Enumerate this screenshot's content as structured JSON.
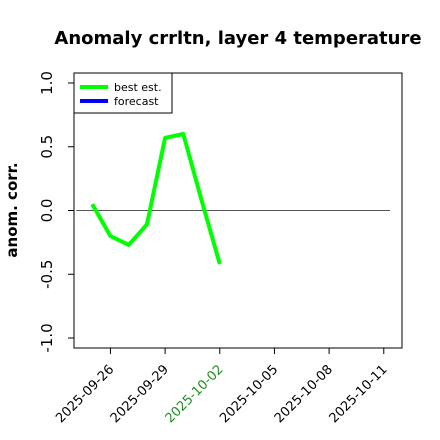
{
  "chart_data": {
    "type": "line",
    "title": "Anomaly crrltn, layer 4 temperature",
    "xlabel": "",
    "ylabel": "anom. corr.",
    "ylim": [
      -1.0,
      1.0
    ],
    "yticks": [
      "1.0",
      "0.5",
      "0.0",
      "-0.5",
      "-1.0"
    ],
    "ytick_values": [
      1.0,
      0.5,
      0.0,
      -0.5,
      -1.0
    ],
    "xlim": [
      "2025-09-24",
      "2025-10-12"
    ],
    "xticks": [
      "2025-09-26",
      "2025-09-29",
      "2025-10-02",
      "2025-10-05",
      "2025-10-08",
      "2025-10-11"
    ],
    "highlighted_xtick": "2025-10-02",
    "highlight_color": "#228B22",
    "reference_line_y": 0.0,
    "legend": {
      "position": "top-left",
      "entries": [
        {
          "label": "best est.",
          "color": "#00ff00"
        },
        {
          "label": "forecast",
          "color": "#0000ff"
        }
      ]
    },
    "series": [
      {
        "name": "best est.",
        "color": "#00ff00",
        "x": [
          "2025-09-25",
          "2025-09-26",
          "2025-09-27",
          "2025-09-28",
          "2025-09-29",
          "2025-09-30",
          "2025-10-01",
          "2025-10-02"
        ],
        "values": [
          0.05,
          -0.2,
          -0.27,
          -0.11,
          0.57,
          0.6,
          0.08,
          -0.42
        ]
      },
      {
        "name": "forecast",
        "color": "#0000ff",
        "x": [],
        "values": []
      }
    ]
  }
}
